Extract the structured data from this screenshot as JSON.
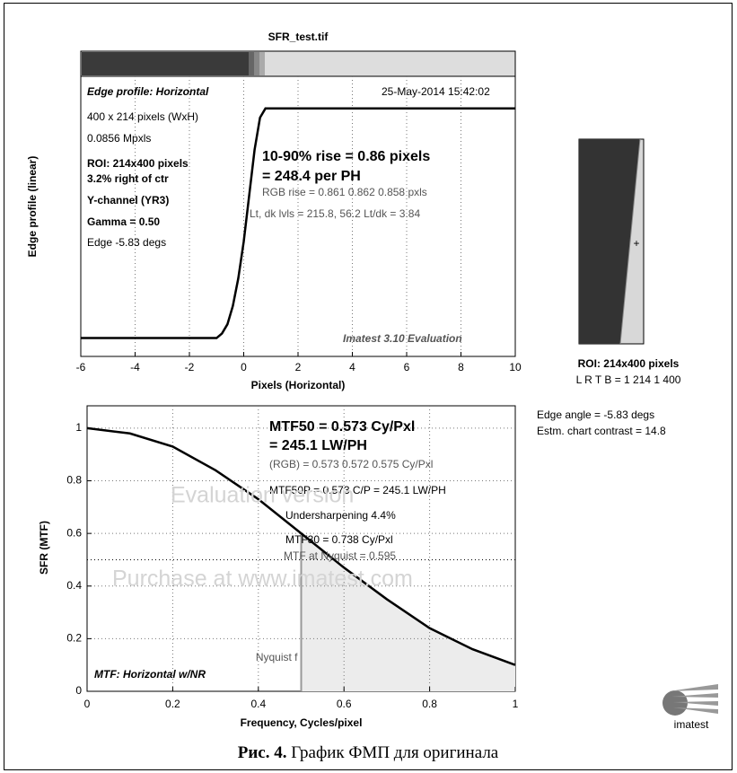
{
  "title": "SFR_test.tif",
  "chart_data": [
    {
      "type": "line",
      "x_label": "Pixels (Horizontal)",
      "y_label": "Edge profile (linear)",
      "x": [
        -6,
        -1,
        -0.8,
        -0.6,
        -0.4,
        -0.2,
        0,
        0.2,
        0.4,
        0.6,
        0.8,
        10
      ],
      "values": [
        0,
        0,
        0.02,
        0.06,
        0.14,
        0.26,
        0.42,
        0.62,
        0.82,
        0.96,
        1,
        1
      ],
      "color": "#000000",
      "xlim": [
        -6,
        10
      ],
      "ylim": [
        -0.08,
        1.14
      ],
      "xticks": [
        -6,
        -4,
        -2,
        0,
        2,
        4,
        6,
        8,
        10
      ],
      "grid": true,
      "annotations": [
        "Edge profile: Horizontal",
        "25-May-2014 15:42:02",
        "400 x 214 pixels (WxH)",
        "0.0856 Mpxls",
        "ROI:  214x400 pixels",
        "3.2% right of ctr",
        "Y-channel  (YR3)",
        "Gamma = 0.50",
        "Edge -5.83 degs",
        "10-90% rise = 0.86 pixels",
        "= 248.4 per PH",
        "RGB rise = 0.861  0.862  0.858 pxls",
        "Lt, dk lvls = 215.8, 56.2   Lt/dk = 3.84",
        "Imatest 3.10 Evaluation"
      ]
    },
    {
      "type": "line",
      "x_label": "Frequency, Cycles/pixel",
      "y_label": "SFR (MTF)",
      "x": [
        0,
        0.1,
        0.2,
        0.3,
        0.4,
        0.5,
        0.6,
        0.7,
        0.8,
        0.9,
        1
      ],
      "values": [
        1,
        0.98,
        0.93,
        0.84,
        0.73,
        0.6,
        0.47,
        0.35,
        0.24,
        0.16,
        0.1
      ],
      "color": "#000000",
      "xlim": [
        0,
        1
      ],
      "ylim": [
        0,
        1.085
      ],
      "xticks": [
        0,
        0.2,
        0.4,
        0.6,
        0.8,
        1
      ],
      "yticks": [
        0,
        0.2,
        0.4,
        0.6,
        0.8,
        1
      ],
      "grid": true,
      "nyquist": 0.5,
      "nyquist_label": "Nyquist f",
      "reference_line": 0.5,
      "annotations": [
        "MTF50 = 0.573 Cy/Pxl",
        "= 245.1 LW/PH",
        "(RGB) = 0.573  0.572  0.575 Cy/Pxl",
        "MTF50P = 0.573 C/P = 245.1 LW/PH",
        "Undersharpening  4.4%",
        "MTF30 = 0.738 Cy/Pxl",
        "MTF at Nyquist = 0.595",
        "Evaluation version",
        "Purchase at www.imatest.com",
        "MTF: Horizontal w/NR"
      ]
    }
  ],
  "side_panel": {
    "roi": "ROI:  214x400 pixels",
    "bounds": "L R  T B = 1  214  1  400",
    "edge_angle": "Edge angle = -5.83 degs",
    "contrast": "Estm. chart contrast = 14.8"
  },
  "logo": "imatest",
  "caption": {
    "number": "Рис. 4.",
    "text": "График ФМП для оригинала"
  }
}
